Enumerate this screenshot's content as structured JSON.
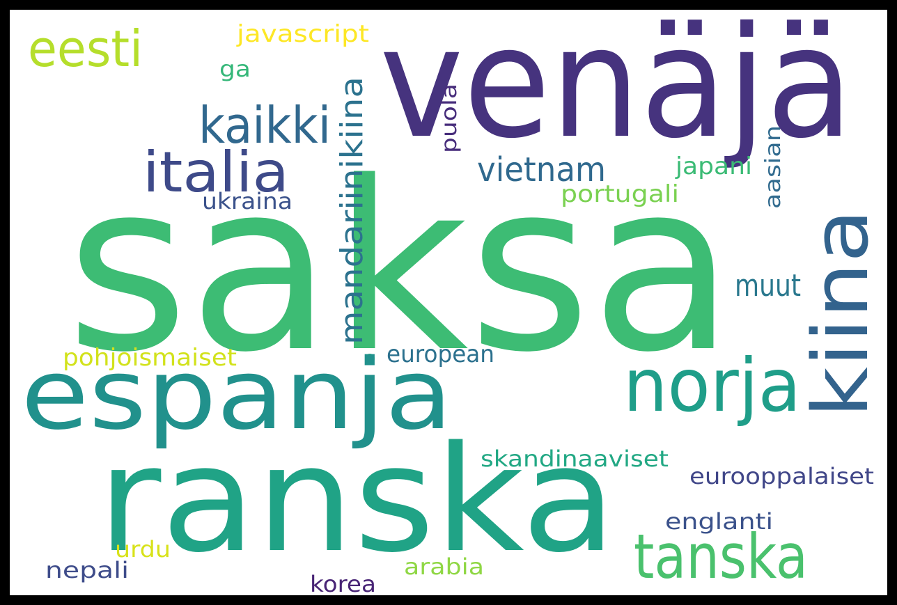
{
  "words": [
    {
      "text": "saksa",
      "color": "#3dbc74"
    },
    {
      "text": "venäjä",
      "color": "#46337e"
    },
    {
      "text": "ranska",
      "color": "#20a386"
    },
    {
      "text": "espanja",
      "color": "#21918c"
    },
    {
      "text": "kiina",
      "color": "#33638d"
    },
    {
      "text": "norja",
      "color": "#1f9e89"
    },
    {
      "text": "tanska",
      "color": "#4ac16d"
    },
    {
      "text": "italia",
      "color": "#3e4a89"
    },
    {
      "text": "kaikki",
      "color": "#31688e"
    },
    {
      "text": "eesti",
      "color": "#b5de2b"
    },
    {
      "text": "mandariinikiina",
      "color": "#2c728e"
    },
    {
      "text": "vietnam",
      "color": "#30698e"
    },
    {
      "text": "puola",
      "color": "#472d7b"
    },
    {
      "text": "aasian",
      "color": "#306a8e"
    },
    {
      "text": "japani",
      "color": "#3bbb75"
    },
    {
      "text": "portugali",
      "color": "#7ad151"
    },
    {
      "text": "ukraina",
      "color": "#3b528b"
    },
    {
      "text": "javascript",
      "color": "#fde725"
    },
    {
      "text": "ga",
      "color": "#35b779"
    },
    {
      "text": "muut",
      "color": "#2a788e"
    },
    {
      "text": "pohjoismaiset",
      "color": "#d2e21b"
    },
    {
      "text": "european",
      "color": "#2c718e"
    },
    {
      "text": "skandinaaviset",
      "color": "#22a884"
    },
    {
      "text": "eurooppalaiset",
      "color": "#404688"
    },
    {
      "text": "englanti",
      "color": "#3b528b"
    },
    {
      "text": "urdu",
      "color": "#d8e219"
    },
    {
      "text": "nepali",
      "color": "#3e4c8a"
    },
    {
      "text": "arabia",
      "color": "#8fd744"
    },
    {
      "text": "korea",
      "color": "#482475"
    }
  ]
}
